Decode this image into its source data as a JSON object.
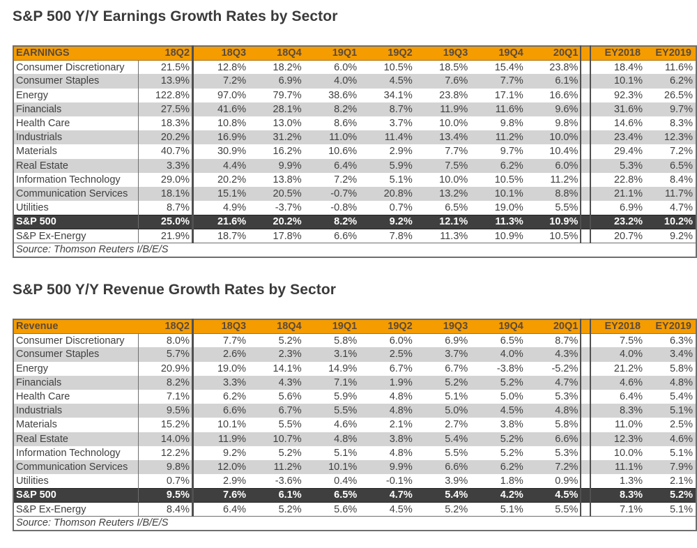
{
  "earnings": {
    "title": "S&P 500 Y/Y Earnings Growth Rates by Sector",
    "header": [
      "EARNINGS",
      "18Q2",
      "18Q3",
      "18Q4",
      "19Q1",
      "19Q2",
      "19Q3",
      "19Q4",
      "20Q1",
      "EY2018",
      "EY2019"
    ],
    "rows": [
      {
        "sector": "Consumer Discretionary",
        "q": [
          "21.5%",
          "12.8%",
          "18.2%",
          "6.0%",
          "10.5%",
          "18.5%",
          "15.4%",
          "23.8%"
        ],
        "ey": [
          "18.4%",
          "11.6%"
        ]
      },
      {
        "sector": "Consumer Staples",
        "q": [
          "13.9%",
          "7.2%",
          "6.9%",
          "4.0%",
          "4.5%",
          "7.6%",
          "7.7%",
          "6.1%"
        ],
        "ey": [
          "10.1%",
          "6.2%"
        ]
      },
      {
        "sector": "Energy",
        "q": [
          "122.8%",
          "97.0%",
          "79.7%",
          "38.6%",
          "34.1%",
          "23.8%",
          "17.1%",
          "16.6%"
        ],
        "ey": [
          "92.3%",
          "26.5%"
        ]
      },
      {
        "sector": "Financials",
        "q": [
          "27.5%",
          "41.6%",
          "28.1%",
          "8.2%",
          "8.7%",
          "11.9%",
          "11.6%",
          "9.6%"
        ],
        "ey": [
          "31.6%",
          "9.7%"
        ]
      },
      {
        "sector": "Health Care",
        "q": [
          "18.3%",
          "10.8%",
          "13.0%",
          "8.6%",
          "3.7%",
          "10.0%",
          "9.8%",
          "9.8%"
        ],
        "ey": [
          "14.6%",
          "8.3%"
        ]
      },
      {
        "sector": "Industrials",
        "q": [
          "20.2%",
          "16.9%",
          "31.2%",
          "11.0%",
          "11.4%",
          "13.4%",
          "11.2%",
          "10.0%"
        ],
        "ey": [
          "23.4%",
          "12.3%"
        ]
      },
      {
        "sector": "Materials",
        "q": [
          "40.7%",
          "30.9%",
          "16.2%",
          "10.6%",
          "2.9%",
          "7.7%",
          "9.7%",
          "10.4%"
        ],
        "ey": [
          "29.4%",
          "7.2%"
        ]
      },
      {
        "sector": "Real Estate",
        "q": [
          "3.3%",
          "4.4%",
          "9.9%",
          "6.4%",
          "5.9%",
          "7.5%",
          "6.2%",
          "6.0%"
        ],
        "ey": [
          "5.3%",
          "6.5%"
        ]
      },
      {
        "sector": "Information Technology",
        "q": [
          "29.0%",
          "20.2%",
          "13.8%",
          "7.2%",
          "5.1%",
          "10.0%",
          "10.5%",
          "11.2%"
        ],
        "ey": [
          "22.8%",
          "8.4%"
        ]
      },
      {
        "sector": "Communication Services",
        "q": [
          "18.1%",
          "15.1%",
          "20.5%",
          "-0.7%",
          "20.8%",
          "13.2%",
          "10.1%",
          "8.8%"
        ],
        "ey": [
          "21.1%",
          "11.7%"
        ]
      },
      {
        "sector": "Utilities",
        "q": [
          "8.7%",
          "4.9%",
          "-3.7%",
          "-0.8%",
          "0.7%",
          "6.5%",
          "19.0%",
          "5.5%"
        ],
        "ey": [
          "6.9%",
          "4.7%"
        ]
      }
    ],
    "total": {
      "sector": "S&P 500",
      "q": [
        "25.0%",
        "21.6%",
        "20.2%",
        "8.2%",
        "9.2%",
        "12.1%",
        "11.3%",
        "10.9%"
      ],
      "ey": [
        "23.2%",
        "10.2%"
      ]
    },
    "ex_energy": {
      "sector": "S&P Ex-Energy",
      "q": [
        "21.9%",
        "18.7%",
        "17.8%",
        "6.6%",
        "7.8%",
        "11.3%",
        "10.9%",
        "10.5%"
      ],
      "ey": [
        "20.7%",
        "9.2%"
      ]
    },
    "source": "Source: Thomson Reuters I/B/E/S"
  },
  "revenue": {
    "title": "S&P 500 Y/Y Revenue Growth Rates by Sector",
    "header": [
      "Revenue",
      "18Q2",
      "18Q3",
      "18Q4",
      "19Q1",
      "19Q2",
      "19Q3",
      "19Q4",
      "20Q1",
      "EY2018",
      "EY2019"
    ],
    "rows": [
      {
        "sector": "Consumer Discretionary",
        "q": [
          "8.0%",
          "7.7%",
          "5.2%",
          "5.8%",
          "6.0%",
          "6.9%",
          "6.5%",
          "8.7%"
        ],
        "ey": [
          "7.5%",
          "6.3%"
        ]
      },
      {
        "sector": "Consumer Staples",
        "q": [
          "5.7%",
          "2.6%",
          "2.3%",
          "3.1%",
          "2.5%",
          "3.7%",
          "4.0%",
          "4.3%"
        ],
        "ey": [
          "4.0%",
          "3.4%"
        ]
      },
      {
        "sector": "Energy",
        "q": [
          "20.9%",
          "19.0%",
          "14.1%",
          "14.9%",
          "6.7%",
          "6.7%",
          "-3.8%",
          "-5.2%"
        ],
        "ey": [
          "21.2%",
          "5.8%"
        ]
      },
      {
        "sector": "Financials",
        "q": [
          "8.2%",
          "3.3%",
          "4.3%",
          "7.1%",
          "1.9%",
          "5.2%",
          "5.2%",
          "4.7%"
        ],
        "ey": [
          "4.6%",
          "4.8%"
        ]
      },
      {
        "sector": "Health Care",
        "q": [
          "7.1%",
          "6.2%",
          "5.6%",
          "5.9%",
          "4.8%",
          "5.1%",
          "5.0%",
          "5.3%"
        ],
        "ey": [
          "6.4%",
          "5.4%"
        ]
      },
      {
        "sector": "Industrials",
        "q": [
          "9.5%",
          "6.6%",
          "6.7%",
          "5.5%",
          "4.8%",
          "5.0%",
          "4.5%",
          "4.8%"
        ],
        "ey": [
          "8.3%",
          "5.1%"
        ]
      },
      {
        "sector": "Materials",
        "q": [
          "15.2%",
          "10.1%",
          "5.5%",
          "4.6%",
          "2.1%",
          "2.7%",
          "3.8%",
          "5.8%"
        ],
        "ey": [
          "11.0%",
          "2.5%"
        ]
      },
      {
        "sector": "Real Estate",
        "q": [
          "14.0%",
          "11.9%",
          "10.7%",
          "4.8%",
          "3.8%",
          "5.4%",
          "5.2%",
          "6.6%"
        ],
        "ey": [
          "12.3%",
          "4.6%"
        ]
      },
      {
        "sector": "Information Technology",
        "q": [
          "12.2%",
          "9.2%",
          "5.2%",
          "5.1%",
          "4.8%",
          "5.5%",
          "5.2%",
          "5.3%"
        ],
        "ey": [
          "10.0%",
          "5.1%"
        ]
      },
      {
        "sector": "Communication Services",
        "q": [
          "9.8%",
          "12.0%",
          "11.2%",
          "10.1%",
          "9.9%",
          "6.6%",
          "6.2%",
          "7.2%"
        ],
        "ey": [
          "11.1%",
          "7.9%"
        ]
      },
      {
        "sector": "Utilities",
        "q": [
          "0.7%",
          "2.9%",
          "-3.6%",
          "0.4%",
          "-0.1%",
          "3.9%",
          "1.8%",
          "0.9%"
        ],
        "ey": [
          "1.3%",
          "2.1%"
        ]
      }
    ],
    "total": {
      "sector": "S&P 500",
      "q": [
        "9.5%",
        "7.6%",
        "6.1%",
        "6.5%",
        "4.7%",
        "5.4%",
        "4.2%",
        "4.5%"
      ],
      "ey": [
        "8.3%",
        "5.2%"
      ]
    },
    "ex_energy": {
      "sector": "S&P Ex-Energy",
      "q": [
        "8.4%",
        "6.4%",
        "5.2%",
        "5.6%",
        "4.5%",
        "5.2%",
        "5.1%",
        "5.5%"
      ],
      "ey": [
        "7.1%",
        "5.1%"
      ]
    },
    "source": "Source: Thomson Reuters I/B/E/S"
  },
  "colors": {
    "header_bg": "#f59c00",
    "band_gray": "#d3d3d3",
    "total_bg": "#3f3f3f"
  }
}
